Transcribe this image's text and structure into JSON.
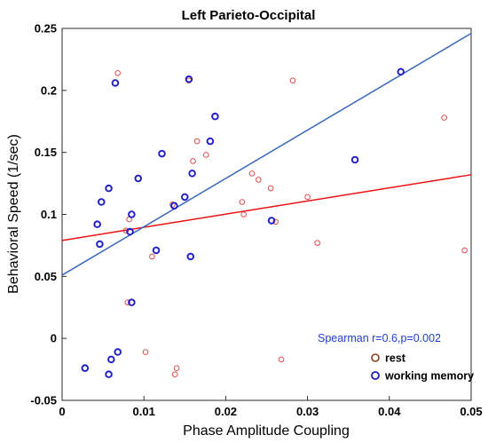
{
  "chart_data": {
    "type": "scatter",
    "title": "Left Parieto-Occipital",
    "xlabel": "Phase Amplitude Coupling",
    "ylabel": "Behavioral Speed (1/sec)",
    "xlim": [
      0,
      0.05
    ],
    "ylim": [
      -0.05,
      0.25
    ],
    "xticks": [
      "0",
      "0.01",
      "0.02",
      "0.03",
      "0.04",
      "0.05"
    ],
    "yticks": [
      "-0.05",
      "0",
      "0.05",
      "0.1",
      "0.15",
      "0.2",
      "0.25"
    ],
    "grid": false,
    "annotation": "Spearman r=0.6,p=0.002",
    "legend_position": "bottom-right",
    "series": [
      {
        "name": "rest",
        "color": "#e34a4a",
        "marker": "open-circle-small",
        "points": [
          [
            0.0068,
            0.214
          ],
          [
            0.0155,
            0.208
          ],
          [
            0.0282,
            0.208
          ],
          [
            0.0467,
            0.178
          ],
          [
            0.0165,
            0.159
          ],
          [
            0.0176,
            0.148
          ],
          [
            0.016,
            0.143
          ],
          [
            0.0232,
            0.133
          ],
          [
            0.024,
            0.128
          ],
          [
            0.0255,
            0.121
          ],
          [
            0.03,
            0.114
          ],
          [
            0.022,
            0.11
          ],
          [
            0.0135,
            0.108
          ],
          [
            0.0222,
            0.1
          ],
          [
            0.0082,
            0.096
          ],
          [
            0.0261,
            0.094
          ],
          [
            0.0078,
            0.087
          ],
          [
            0.0312,
            0.077
          ],
          [
            0.0492,
            0.071
          ],
          [
            0.011,
            0.066
          ],
          [
            0.008,
            0.029
          ],
          [
            0.0102,
            -0.011
          ],
          [
            0.014,
            -0.024
          ],
          [
            0.0268,
            -0.017
          ],
          [
            0.0138,
            -0.029
          ]
        ]
      },
      {
        "name": "working memory",
        "color": "#1c1cc8",
        "marker": "open-circle",
        "points": [
          [
            0.0065,
            0.206
          ],
          [
            0.0155,
            0.209
          ],
          [
            0.0414,
            0.215
          ],
          [
            0.0187,
            0.179
          ],
          [
            0.0181,
            0.159
          ],
          [
            0.0122,
            0.149
          ],
          [
            0.0358,
            0.144
          ],
          [
            0.0159,
            0.133
          ],
          [
            0.0093,
            0.129
          ],
          [
            0.0057,
            0.121
          ],
          [
            0.015,
            0.114
          ],
          [
            0.0048,
            0.11
          ],
          [
            0.0137,
            0.107
          ],
          [
            0.0085,
            0.1
          ],
          [
            0.0043,
            0.092
          ],
          [
            0.0256,
            0.095
          ],
          [
            0.0083,
            0.086
          ],
          [
            0.0046,
            0.076
          ],
          [
            0.0115,
            0.071
          ],
          [
            0.0157,
            0.066
          ],
          [
            0.0085,
            0.029
          ],
          [
            0.0068,
            -0.011
          ],
          [
            0.006,
            -0.017
          ],
          [
            0.0028,
            -0.024
          ],
          [
            0.0057,
            -0.029
          ]
        ]
      }
    ],
    "fit_lines": [
      {
        "series": "rest",
        "color": "#ee1111",
        "x": [
          0,
          0.05
        ],
        "y": [
          0.079,
          0.132
        ]
      },
      {
        "series": "working memory",
        "color": "#3a68bd",
        "x": [
          0,
          0.05
        ],
        "y": [
          0.051,
          0.246
        ]
      }
    ]
  }
}
